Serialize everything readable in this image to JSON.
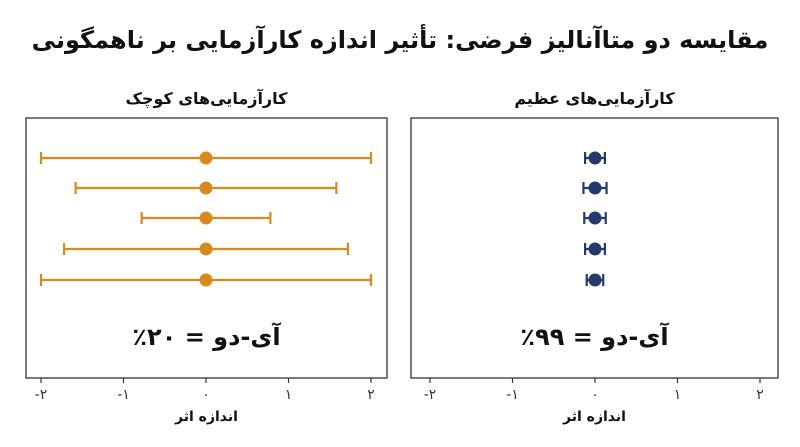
{
  "title": "مقایسه دو متاآنالیز فرضی: تأثیر اندازه کارآزمایی بر ناهمگونی",
  "chart_data": [
    {
      "type": "forest",
      "panel": "left",
      "title": "کارآزمایی‌های کوچک",
      "xlabel": "اندازه اثر",
      "xlim": [
        -2.1,
        2.1
      ],
      "xticks": [
        -2,
        -1,
        0,
        1,
        2
      ],
      "xtick_labels": [
        "-۲",
        "-۱",
        "۰",
        "۱",
        "۲"
      ],
      "annotation": "آی-دو = ۲۰٪",
      "color": "#D98A1E",
      "points": [
        {
          "estimate": 0,
          "lower": -2.0,
          "upper": 2.0
        },
        {
          "estimate": 0,
          "lower": -1.58,
          "upper": 1.58
        },
        {
          "estimate": 0,
          "lower": -0.78,
          "upper": 0.78
        },
        {
          "estimate": 0,
          "lower": -1.72,
          "upper": 1.72
        },
        {
          "estimate": 0,
          "lower": -2.0,
          "upper": 2.0
        }
      ]
    },
    {
      "type": "forest",
      "panel": "right",
      "title": "کارآزمایی‌های عظیم",
      "xlabel": "اندازه اثر",
      "xlim": [
        -2.1,
        2.1
      ],
      "xticks": [
        -2,
        -1,
        0,
        1,
        2
      ],
      "xtick_labels": [
        "-۲",
        "-۱",
        "۰",
        "۱",
        "۲"
      ],
      "annotation": "آی-دو = ۹۹٪",
      "color": "#243A6B",
      "points": [
        {
          "estimate": 0.0,
          "lower": -0.12,
          "upper": 0.12
        },
        {
          "estimate": 0.0,
          "lower": -0.14,
          "upper": 0.14
        },
        {
          "estimate": 0.0,
          "lower": -0.13,
          "upper": 0.13
        },
        {
          "estimate": 0.0,
          "lower": -0.12,
          "upper": 0.12
        },
        {
          "estimate": 0.0,
          "lower": -0.1,
          "upper": 0.1
        }
      ]
    }
  ]
}
